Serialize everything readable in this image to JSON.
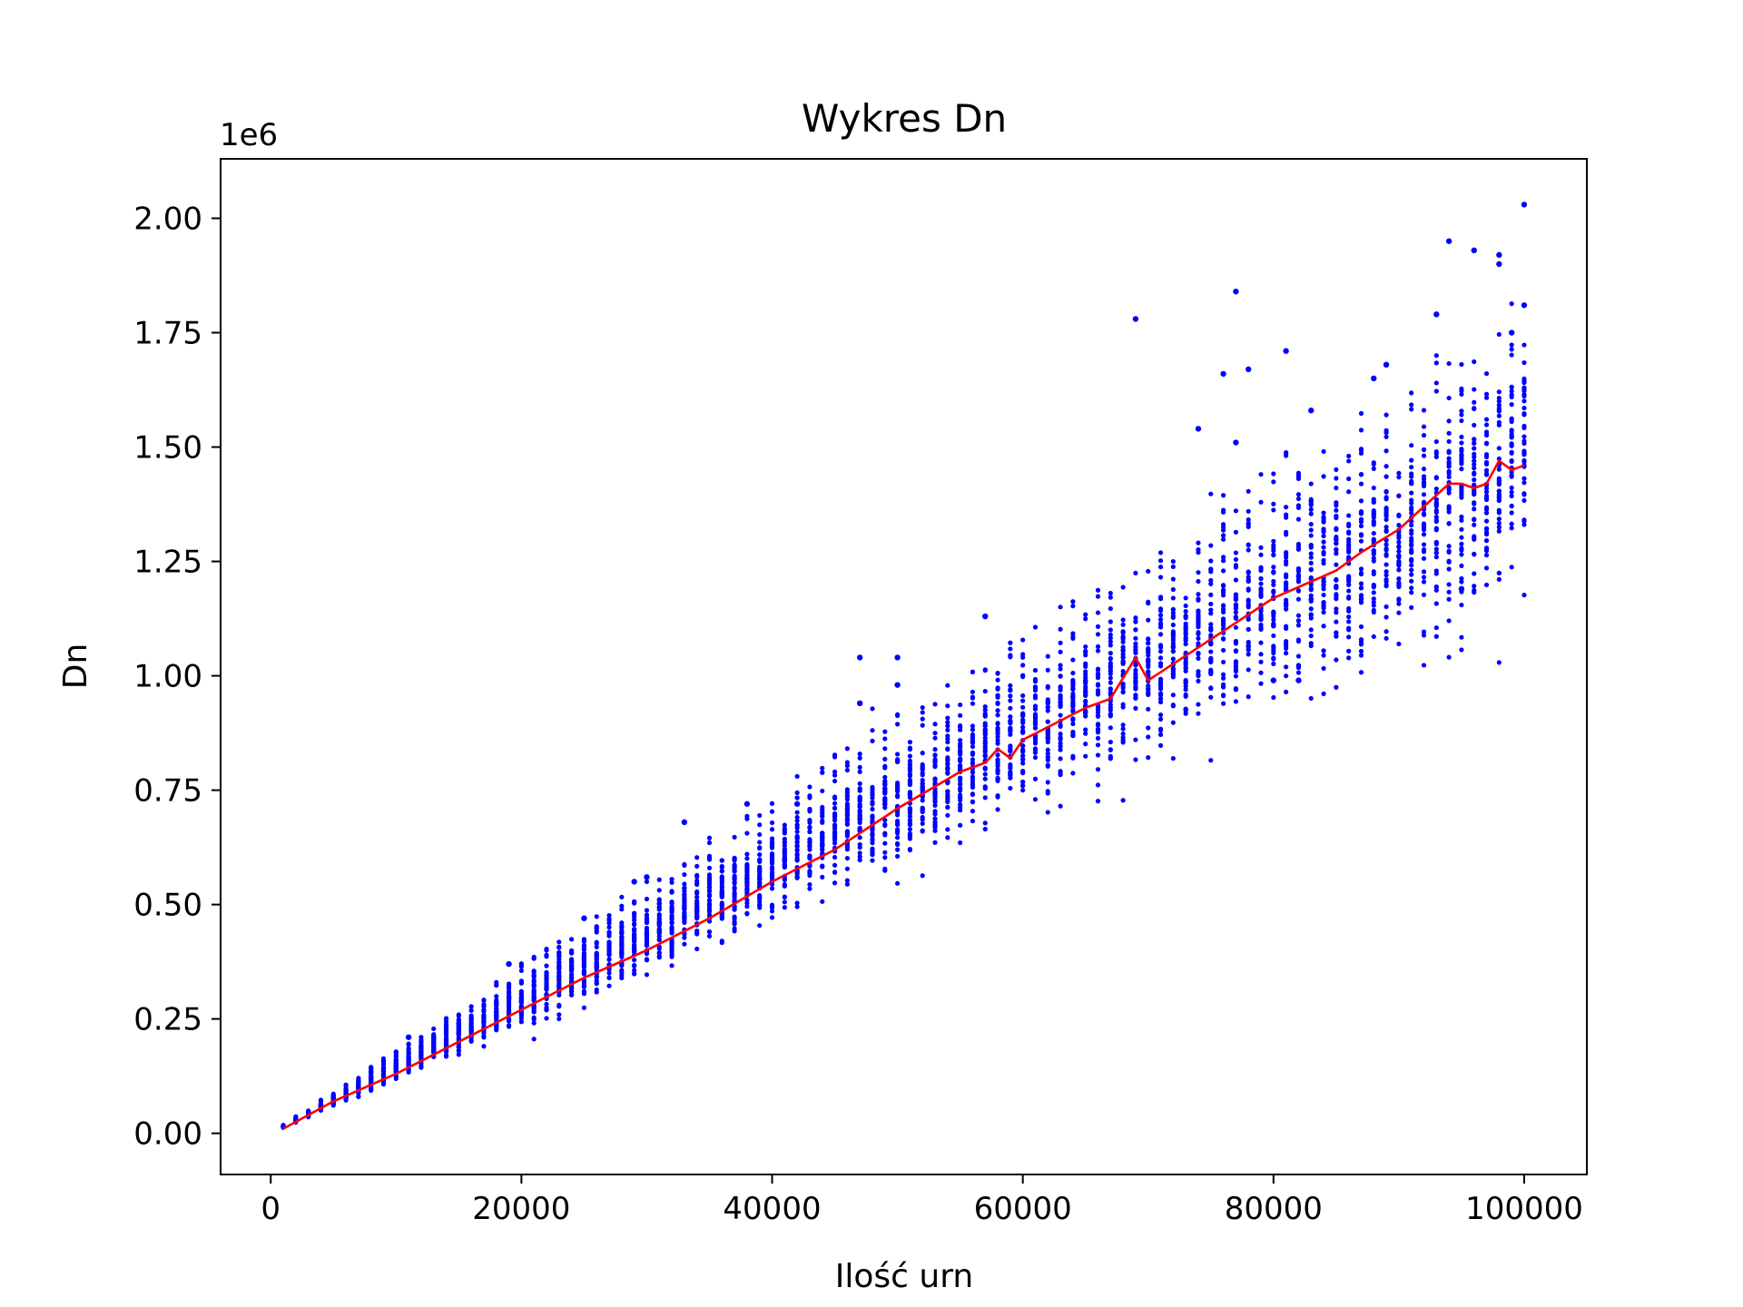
{
  "chart_data": {
    "type": "scatter",
    "title": "Wykres Dn",
    "xlabel": "Ilość urn",
    "ylabel": "Dn",
    "y_offset_label": "1e6",
    "xlim": [
      -4000,
      105000
    ],
    "ylim": [
      -0.09,
      2.13
    ],
    "x_ticks": [
      {
        "value": 0,
        "label": "0"
      },
      {
        "value": 20000,
        "label": "20000"
      },
      {
        "value": 40000,
        "label": "40000"
      },
      {
        "value": 60000,
        "label": "60000"
      },
      {
        "value": 80000,
        "label": "80000"
      },
      {
        "value": 100000,
        "label": "100000"
      }
    ],
    "y_ticks": [
      {
        "value": 0.0,
        "label": "0.00"
      },
      {
        "value": 0.25,
        "label": "0.25"
      },
      {
        "value": 0.5,
        "label": "0.50"
      },
      {
        "value": 0.75,
        "label": "0.75"
      },
      {
        "value": 1.0,
        "label": "1.00"
      },
      {
        "value": 1.25,
        "label": "1.25"
      },
      {
        "value": 1.5,
        "label": "1.50"
      },
      {
        "value": 1.75,
        "label": "1.75"
      },
      {
        "value": 2.0,
        "label": "2.00"
      }
    ],
    "grid": false,
    "legend": "none",
    "colors": {
      "scatter": "#0000ff",
      "mean_line": "#ff0000"
    },
    "scatter_model": {
      "x_start": 1000,
      "x_end": 100000,
      "x_step": 1000,
      "points_per_x": 40,
      "mean_per_1000_urns": 0.0146,
      "relative_spread": 0.085,
      "outlier_rate": 0.04
    },
    "series": [
      {
        "kind": "mean-line",
        "x": [
          1000,
          5000,
          10000,
          15000,
          20000,
          25000,
          30000,
          35000,
          40000,
          45000,
          50000,
          55000,
          57000,
          58000,
          59000,
          60000,
          65000,
          67000,
          69000,
          70000,
          75000,
          80000,
          85000,
          87000,
          90000,
          94000,
          95000,
          96000,
          97000,
          98000,
          99000,
          100000
        ],
        "y": [
          0.01,
          0.07,
          0.13,
          0.2,
          0.27,
          0.34,
          0.4,
          0.47,
          0.55,
          0.62,
          0.71,
          0.79,
          0.81,
          0.84,
          0.82,
          0.86,
          0.93,
          0.95,
          1.04,
          0.99,
          1.08,
          1.17,
          1.23,
          1.27,
          1.32,
          1.42,
          1.42,
          1.41,
          1.42,
          1.47,
          1.45,
          1.46
        ]
      },
      {
        "kind": "outliers",
        "x": [
          11000,
          19000,
          25000,
          29000,
          30000,
          33000,
          38000,
          42000,
          47000,
          47000,
          50000,
          50000,
          57000,
          69000,
          74000,
          76000,
          77000,
          77000,
          78000,
          80000,
          81000,
          82000,
          83000,
          88000,
          89000,
          93000,
          94000,
          95000,
          96000,
          98000,
          98000,
          99000,
          100000,
          100000
        ],
        "y": [
          0.21,
          0.37,
          0.47,
          0.55,
          0.56,
          0.68,
          0.72,
          0.72,
          1.04,
          0.94,
          1.04,
          0.98,
          1.13,
          1.78,
          1.54,
          1.66,
          1.84,
          1.51,
          1.67,
          0.99,
          1.71,
          0.99,
          1.58,
          1.65,
          1.68,
          1.79,
          1.95,
          1.19,
          1.93,
          1.92,
          1.9,
          1.75,
          2.03,
          1.81
        ]
      }
    ]
  }
}
